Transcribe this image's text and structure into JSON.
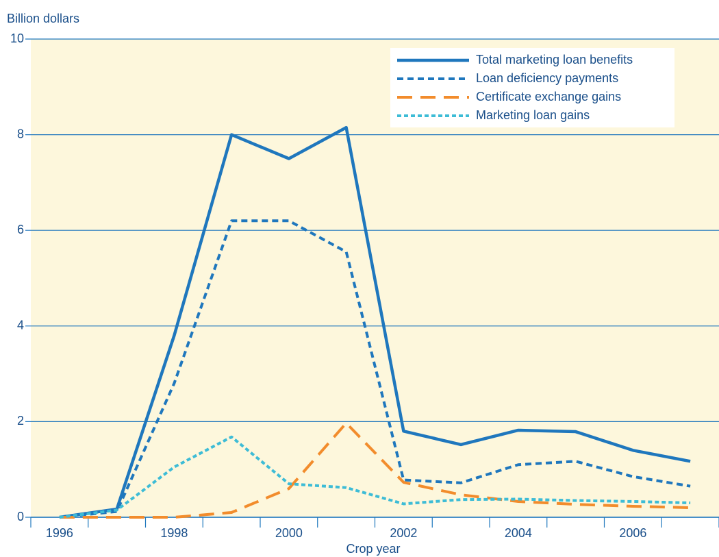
{
  "chart_data": {
    "type": "line",
    "y_axis_label": "Billion dollars",
    "x_axis_label": "Crop year",
    "categories": [
      "1996",
      null,
      "1998",
      null,
      "2000",
      null,
      "2002",
      null,
      "2004",
      null,
      "2006",
      null
    ],
    "series": [
      {
        "name": "Total marketing loan benefits",
        "color": "#1f77bd",
        "line_style": "solid",
        "values": [
          0,
          0.17,
          3.8,
          8.0,
          7.5,
          8.15,
          1.8,
          1.52,
          1.82,
          1.79,
          1.4,
          1.17
        ]
      },
      {
        "name": "Loan deficiency payments",
        "color": "#1f77bd",
        "line_style": "dotted",
        "values": [
          0,
          0.12,
          2.8,
          6.2,
          6.2,
          5.55,
          0.78,
          0.72,
          1.1,
          1.17,
          0.85,
          0.65
        ]
      },
      {
        "name": "Certificate exchange gains",
        "color": "#f28c2c",
        "line_style": "dashed",
        "values": [
          0,
          0,
          0,
          0.1,
          0.6,
          1.97,
          0.73,
          0.47,
          0.33,
          0.27,
          0.23,
          0.2
        ]
      },
      {
        "name": "Marketing loan gains",
        "color": "#3dbcd6",
        "line_style": "dense",
        "values": [
          0,
          0.15,
          1.05,
          1.68,
          0.7,
          0.62,
          0.28,
          0.37,
          0.38,
          0.35,
          0.33,
          0.3
        ]
      }
    ],
    "ylim": [
      0,
      10
    ],
    "yticks": [
      0,
      2,
      4,
      6,
      8,
      10
    ],
    "grid": true,
    "legend": "upper right"
  }
}
